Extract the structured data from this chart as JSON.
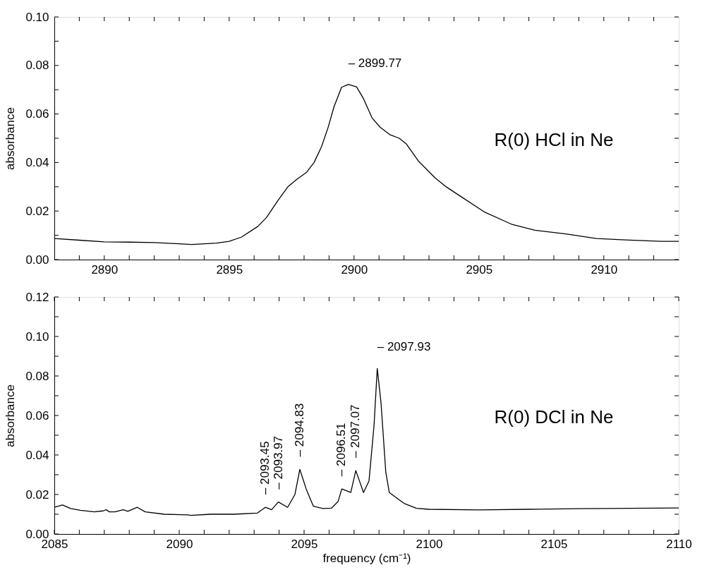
{
  "chart_data": [
    {
      "type": "line",
      "ylabel": "absorbance",
      "x": [
        2888,
        2889,
        2890,
        2891,
        2892,
        2893,
        2893.5,
        2894,
        2894.5,
        2895,
        2895.5,
        2896.15,
        2896.5,
        2896.95,
        2897.36,
        2897.7,
        2898.1,
        2898.4,
        2898.7,
        2898.96,
        2899.2,
        2899.5,
        2899.77,
        2900.1,
        2900.38,
        2900.72,
        2901.05,
        2901.43,
        2901.81,
        2902.1,
        2902.57,
        2903.24,
        2903.7,
        2904.29,
        2905.24,
        2906.3,
        2907.24,
        2908.48,
        2909.7,
        2910.86,
        2912.29,
        2913
      ],
      "series": [
        {
          "color": "#000000",
          "values": [
            0.0087,
            0.008,
            0.0073,
            0.0072,
            0.007,
            0.0065,
            0.0062,
            0.0065,
            0.0068,
            0.0075,
            0.0093,
            0.0137,
            0.0174,
            0.0243,
            0.0301,
            0.033,
            0.036,
            0.04,
            0.0466,
            0.0544,
            0.063,
            0.071,
            0.0722,
            0.0712,
            0.0663,
            0.0584,
            0.0545,
            0.0515,
            0.05,
            0.0476,
            0.0407,
            0.0337,
            0.0299,
            0.0259,
            0.0195,
            0.0146,
            0.0121,
            0.0106,
            0.0087,
            0.0081,
            0.0075,
            0.0075
          ]
        }
      ],
      "xlim": [
        2888,
        2913
      ],
      "xticks": [
        {
          "value": 2889,
          "label": null
        },
        2890,
        {
          "value": 2891,
          "label": null
        },
        {
          "value": 2892,
          "label": null
        },
        {
          "value": 2893,
          "label": null
        },
        {
          "value": 2894,
          "label": null
        },
        2895,
        {
          "value": 2896,
          "label": null
        },
        {
          "value": 2897,
          "label": null
        },
        {
          "value": 2898,
          "label": null
        },
        {
          "value": 2899,
          "label": null
        },
        2900,
        {
          "value": 2901,
          "label": null
        },
        {
          "value": 2902,
          "label": null
        },
        {
          "value": 2903,
          "label": null
        },
        {
          "value": 2904,
          "label": null
        },
        2905,
        {
          "value": 2906,
          "label": null
        },
        {
          "value": 2907,
          "label": null
        },
        {
          "value": 2908,
          "label": null
        },
        {
          "value": 2909,
          "label": null
        },
        2910,
        {
          "value": 2911,
          "label": null
        },
        {
          "value": 2912,
          "label": null
        }
      ],
      "ylim": [
        0,
        0.1
      ],
      "yticks": [
        {
          "value": 0,
          "label": "0.00"
        },
        {
          "value": 0.01,
          "label": null
        },
        {
          "value": 0.02,
          "label": "0.02"
        },
        {
          "value": 0.03,
          "label": null
        },
        {
          "value": 0.04,
          "label": "0.04"
        },
        {
          "value": 0.05,
          "label": null
        },
        {
          "value": 0.06,
          "label": "0.06"
        },
        {
          "value": 0.07,
          "label": null
        },
        {
          "value": 0.08,
          "label": "0.08"
        },
        {
          "value": 0.09,
          "label": null
        },
        {
          "value": 0.1,
          "label": "0.10"
        }
      ],
      "annotations": [
        {
          "text": "– 2899.77",
          "x": 2899.77,
          "y": 0.0722
        },
        "R(0) HCl in Ne"
      ],
      "grid": false,
      "marker": "none",
      "line_style": "solid"
    },
    {
      "type": "line",
      "ylabel": "absorbance",
      "xlabel": "frequency (cm⁻¹)",
      "x": [
        2085,
        2085.33,
        2085.65,
        2086.03,
        2086.6,
        2086.96,
        2087.08,
        2087.2,
        2087.43,
        2087.76,
        2087.94,
        2088.32,
        2088.64,
        2089.4,
        2090.33,
        2090.47,
        2091.26,
        2092.2,
        2093.13,
        2093.45,
        2093.7,
        2093.97,
        2094.34,
        2094.63,
        2094.83,
        2095.1,
        2095.37,
        2095.75,
        2096.1,
        2096.36,
        2096.51,
        2096.87,
        2097.07,
        2097.38,
        2097.6,
        2097.8,
        2097.93,
        2098.08,
        2098.27,
        2098.41,
        2099,
        2099.5,
        2100,
        2102,
        2104,
        2106,
        2108,
        2110
      ],
      "series": [
        {
          "color": "#000000",
          "values": [
            0.0135,
            0.0147,
            0.0129,
            0.012,
            0.0112,
            0.0117,
            0.0123,
            0.0112,
            0.0112,
            0.0123,
            0.0115,
            0.0135,
            0.0112,
            0.01,
            0.0097,
            0.0094,
            0.01,
            0.01,
            0.0106,
            0.0135,
            0.0123,
            0.0162,
            0.0135,
            0.0199,
            0.0327,
            0.0222,
            0.0141,
            0.0129,
            0.0131,
            0.0164,
            0.0228,
            0.021,
            0.0321,
            0.021,
            0.0269,
            0.0548,
            0.0838,
            0.0664,
            0.0315,
            0.021,
            0.0155,
            0.013,
            0.0125,
            0.0122,
            0.0125,
            0.0128,
            0.013,
            0.0132
          ]
        }
      ],
      "xlim": [
        2085,
        2110
      ],
      "xticks": [
        2085,
        {
          "value": 2086,
          "label": null
        },
        {
          "value": 2087,
          "label": null
        },
        {
          "value": 2088,
          "label": null
        },
        {
          "value": 2089,
          "label": null
        },
        2090,
        {
          "value": 2091,
          "label": null
        },
        {
          "value": 2092,
          "label": null
        },
        {
          "value": 2093,
          "label": null
        },
        {
          "value": 2094,
          "label": null
        },
        2095,
        {
          "value": 2096,
          "label": null
        },
        {
          "value": 2097,
          "label": null
        },
        {
          "value": 2098,
          "label": null
        },
        {
          "value": 2099,
          "label": null
        },
        2100,
        {
          "value": 2101,
          "label": null
        },
        {
          "value": 2102,
          "label": null
        },
        {
          "value": 2103,
          "label": null
        },
        {
          "value": 2104,
          "label": null
        },
        2105,
        {
          "value": 2106,
          "label": null
        },
        {
          "value": 2107,
          "label": null
        },
        {
          "value": 2108,
          "label": null
        },
        {
          "value": 2109,
          "label": null
        },
        2110
      ],
      "ylim": [
        0,
        0.12
      ],
      "yticks": [
        {
          "value": 0,
          "label": "0.00"
        },
        {
          "value": 0.01,
          "label": null
        },
        {
          "value": 0.02,
          "label": "0.02"
        },
        {
          "value": 0.03,
          "label": null
        },
        {
          "value": 0.04,
          "label": "0.04"
        },
        {
          "value": 0.05,
          "label": null
        },
        {
          "value": 0.06,
          "label": "0.06"
        },
        {
          "value": 0.07,
          "label": null
        },
        {
          "value": 0.08,
          "label": "0.08"
        },
        {
          "value": 0.09,
          "label": null
        },
        {
          "value": 0.1,
          "label": "0.10"
        },
        {
          "value": 0.11,
          "label": null
        },
        {
          "value": 0.12,
          "label": "0.12"
        }
      ],
      "annotations": [
        {
          "text": "– 2093.45",
          "x": 2093.45,
          "y": 0.0135
        },
        {
          "text": "– 2093.97",
          "x": 2093.97,
          "y": 0.0162
        },
        {
          "text": "– 2094.83",
          "x": 2094.83,
          "y": 0.0327
        },
        {
          "text": "– 2096.51",
          "x": 2096.51,
          "y": 0.0228
        },
        {
          "text": "– 2097.07",
          "x": 2097.07,
          "y": 0.0321
        },
        {
          "text": "– 2097.93",
          "x": 2097.93,
          "y": 0.0838
        },
        "R(0) DCl in Ne"
      ],
      "grid": false,
      "marker": "none",
      "line_style": "solid"
    }
  ]
}
